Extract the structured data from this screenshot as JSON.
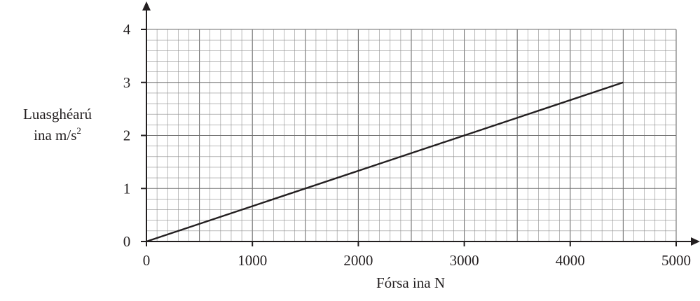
{
  "chart_data": {
    "type": "line",
    "title": "",
    "xlabel": "Fórsa ina N",
    "ylabel_line1": "Luasghéarú",
    "ylabel_line2_prefix": "ina m/s",
    "ylabel_superscript": "2",
    "xlim": [
      0,
      5000
    ],
    "ylim": [
      0,
      4
    ],
    "x_ticks": [
      "0",
      "1000",
      "2000",
      "3000",
      "4000",
      "5000"
    ],
    "y_ticks": [
      "0",
      "1",
      "2",
      "3",
      "4"
    ],
    "grid": true,
    "legend": "none",
    "series": [
      {
        "x": [
          0,
          4500
        ],
        "y": [
          0,
          3
        ]
      }
    ],
    "colors": {
      "ink": "#231f20",
      "grid": "#8f8f8f"
    }
  }
}
